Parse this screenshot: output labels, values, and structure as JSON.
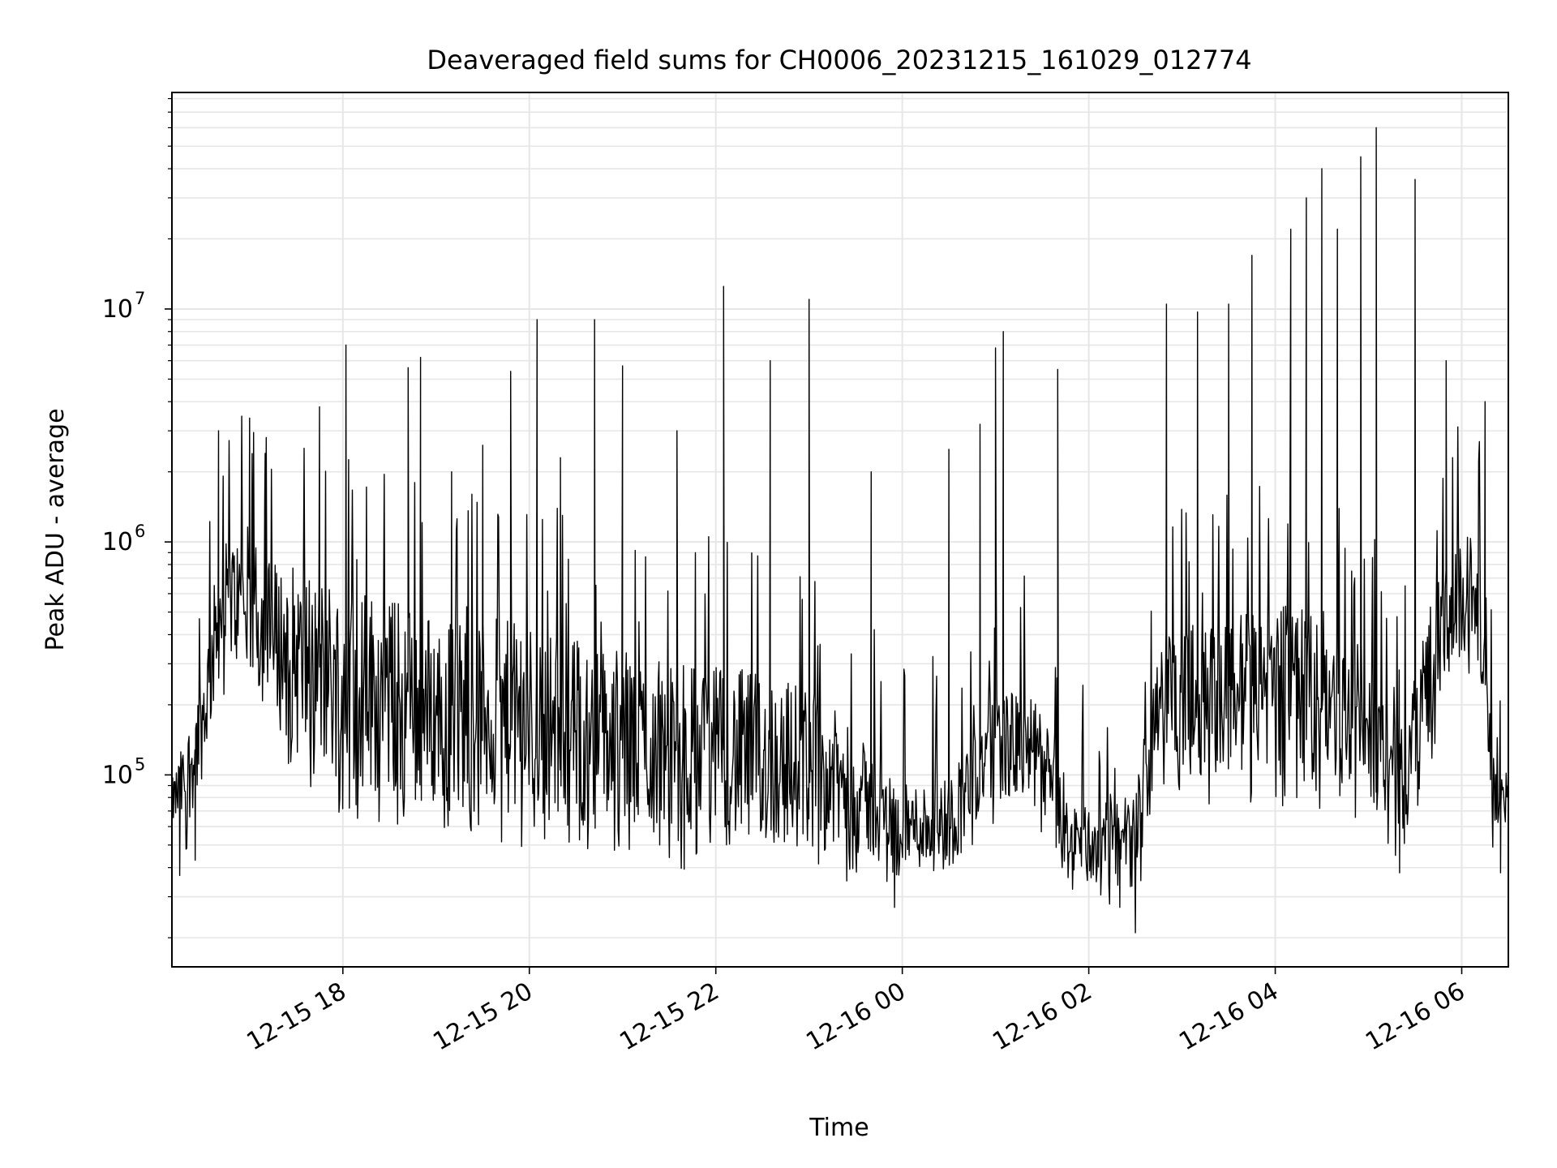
{
  "chart_data": {
    "type": "line",
    "title": "Deaveraged field sums for CH0006_20231215_161029_012774",
    "xlabel": "Time",
    "ylabel": "Peak ADU - average",
    "x_tick_labels": [
      "12-15 18",
      "12-15 20",
      "12-15 22",
      "12-16 00",
      "12-16 02",
      "12-16 04",
      "12-16 06"
    ],
    "x_ticks": [
      "2023-12-15 18:00",
      "2023-12-15 20:00",
      "2023-12-15 22:00",
      "2023-12-16 00:00",
      "2023-12-16 02:00",
      "2023-12-16 04:00",
      "2023-12-16 06:00"
    ],
    "xlim": [
      "2023-12-15 16:10",
      "2023-12-16 06:30"
    ],
    "y_scale": "log",
    "ylim": [
      15000,
      85000000
    ],
    "y_major_ticks": [
      100000,
      1000000,
      10000000
    ],
    "y_tick_labels": [
      {
        "base": "10",
        "exp": "5"
      },
      {
        "base": "10",
        "exp": "6"
      },
      {
        "base": "10",
        "exp": "7"
      }
    ],
    "grid": true,
    "line_color": "#000000",
    "grid_color": "#e6e6e6",
    "envelope": [
      [
        "2023-12-15 16:10",
        60000,
        95000
      ],
      [
        "2023-12-15 16:20",
        60000,
        160000
      ],
      [
        "2023-12-15 16:30",
        100000,
        300000
      ],
      [
        "2023-12-15 16:40",
        250000,
        900000
      ],
      [
        "2023-12-15 16:50",
        300000,
        1100000
      ],
      [
        "2023-12-15 17:00",
        250000,
        900000
      ],
      [
        "2023-12-15 17:30",
        120000,
        800000
      ],
      [
        "2023-12-15 18:00",
        90000,
        700000
      ],
      [
        "2023-12-15 19:00",
        70000,
        500000
      ],
      [
        "2023-12-15 20:00",
        65000,
        450000
      ],
      [
        "2023-12-15 21:00",
        55000,
        350000
      ],
      [
        "2023-12-15 22:00",
        50000,
        300000
      ],
      [
        "2023-12-15 23:00",
        48000,
        250000
      ],
      [
        "2023-12-15 23:30",
        45000,
        150000
      ],
      [
        "2023-12-16 00:00",
        40000,
        90000
      ],
      [
        "2023-12-16 00:30",
        38000,
        100000
      ],
      [
        "2023-12-16 01:00",
        80000,
        250000
      ],
      [
        "2023-12-16 01:30",
        70000,
        200000
      ],
      [
        "2023-12-16 01:45",
        35000,
        80000
      ],
      [
        "2023-12-16 02:00",
        33000,
        75000
      ],
      [
        "2023-12-16 02:30",
        33000,
        80000
      ],
      [
        "2023-12-16 02:45",
        120000,
        500000
      ],
      [
        "2023-12-16 03:00",
        100000,
        400000
      ],
      [
        "2023-12-16 04:00",
        100000,
        600000
      ],
      [
        "2023-12-16 05:00",
        80000,
        350000
      ],
      [
        "2023-12-16 05:20",
        50000,
        150000
      ],
      [
        "2023-12-16 05:40",
        150000,
        600000
      ],
      [
        "2023-12-16 06:00",
        300000,
        1000000
      ],
      [
        "2023-12-16 06:10",
        400000,
        1200000
      ],
      [
        "2023-12-16 06:20",
        60000,
        120000
      ],
      [
        "2023-12-16 06:30",
        60000,
        100000
      ]
    ],
    "spikes": [
      [
        "2023-12-15 16:40",
        3000000
      ],
      [
        "2023-12-15 17:00",
        3400000
      ],
      [
        "2023-12-15 17:10",
        2400000
      ],
      [
        "2023-12-15 17:45",
        3800000
      ],
      [
        "2023-12-15 18:02",
        7000000
      ],
      [
        "2023-12-15 18:42",
        5600000
      ],
      [
        "2023-12-15 18:50",
        6200000
      ],
      [
        "2023-12-15 19:10",
        2000000
      ],
      [
        "2023-12-15 19:30",
        2600000
      ],
      [
        "2023-12-15 19:48",
        5400000
      ],
      [
        "2023-12-15 20:05",
        9000000
      ],
      [
        "2023-12-15 20:20",
        2300000
      ],
      [
        "2023-12-15 20:42",
        9000000
      ],
      [
        "2023-12-15 21:00",
        5700000
      ],
      [
        "2023-12-15 21:35",
        3000000
      ],
      [
        "2023-12-15 22:05",
        12500000
      ],
      [
        "2023-12-15 22:35",
        6000000
      ],
      [
        "2023-12-15 23:00",
        11000000
      ],
      [
        "2023-12-15 23:40",
        2000000
      ],
      [
        "2023-12-16 00:30",
        2500000
      ],
      [
        "2023-12-16 00:50",
        3200000
      ],
      [
        "2023-12-16 01:00",
        6800000
      ],
      [
        "2023-12-16 01:05",
        8000000
      ],
      [
        "2023-12-16 01:40",
        5500000
      ],
      [
        "2023-12-16 02:50",
        10500000
      ],
      [
        "2023-12-16 03:10",
        9700000
      ],
      [
        "2023-12-16 03:30",
        10500000
      ],
      [
        "2023-12-16 03:45",
        17000000
      ],
      [
        "2023-12-16 04:10",
        22000000
      ],
      [
        "2023-12-16 04:20",
        30000000
      ],
      [
        "2023-12-16 04:30",
        40000000
      ],
      [
        "2023-12-16 04:40",
        22000000
      ],
      [
        "2023-12-16 04:55",
        45000000
      ],
      [
        "2023-12-16 05:05",
        60000000
      ],
      [
        "2023-12-16 05:30",
        36000000
      ],
      [
        "2023-12-16 05:50",
        6000000
      ],
      [
        "2023-12-16 06:15",
        4000000
      ]
    ],
    "dips": [
      [
        "2023-12-15 16:15",
        37000
      ],
      [
        "2023-12-15 16:25",
        43000
      ],
      [
        "2023-12-15 23:55",
        27000
      ],
      [
        "2023-12-16 02:20",
        27000
      ],
      [
        "2023-12-16 02:30",
        21000
      ],
      [
        "2023-12-16 05:20",
        38000
      ],
      [
        "2023-12-16 06:25",
        38000
      ]
    ]
  }
}
